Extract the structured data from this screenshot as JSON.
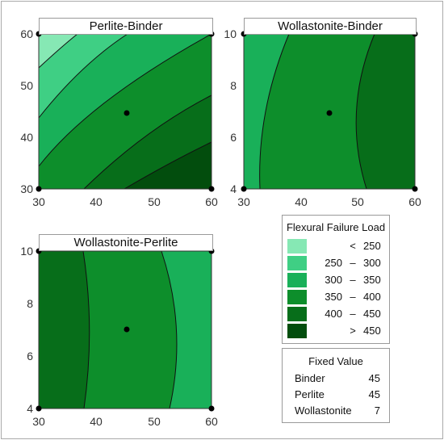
{
  "chart_data": [
    {
      "type": "contour",
      "title": "Perlite-Binder",
      "x_label": "",
      "y_label": "",
      "xlim": [
        30,
        60
      ],
      "ylim": [
        30,
        60
      ],
      "x_ticks": [
        "30",
        "40",
        "50",
        "60"
      ],
      "y_ticks": [
        "30",
        "40",
        "50",
        "60"
      ],
      "center_point": [
        45,
        45
      ],
      "corner_points": [
        [
          30,
          30
        ],
        [
          30,
          60
        ],
        [
          60,
          30
        ],
        [
          60,
          60
        ]
      ],
      "regions_present": [
        "250 – 300",
        "300 – 350",
        "350 – 400",
        "400 – 450",
        "> 450"
      ]
    },
    {
      "type": "contour",
      "title": "Wollastonite-Binder",
      "x_label": "",
      "y_label": "",
      "xlim": [
        30,
        60
      ],
      "ylim": [
        4,
        10
      ],
      "x_ticks": [
        "30",
        "40",
        "50",
        "60"
      ],
      "y_ticks": [
        "4",
        "6",
        "8",
        "10"
      ],
      "center_point": [
        45,
        7
      ],
      "corner_points": [
        [
          30,
          4
        ],
        [
          30,
          10
        ],
        [
          60,
          4
        ],
        [
          60,
          10
        ]
      ],
      "regions_present": [
        "300 – 350",
        "350 – 400",
        "400 – 450"
      ]
    },
    {
      "type": "contour",
      "title": "Wollastonite-Perlite",
      "x_label": "",
      "y_label": "",
      "xlim": [
        30,
        60
      ],
      "ylim": [
        4,
        10
      ],
      "x_ticks": [
        "30",
        "40",
        "50",
        "60"
      ],
      "y_ticks": [
        "4",
        "6",
        "8",
        "10"
      ],
      "center_point": [
        45,
        7
      ],
      "corner_points": [
        [
          30,
          4
        ],
        [
          30,
          10
        ],
        [
          60,
          4
        ],
        [
          60,
          10
        ]
      ],
      "regions_present": [
        "400 – 450",
        "350 – 400",
        "300 – 350"
      ]
    }
  ],
  "legend": {
    "title": "Flexural Failure Load",
    "items": [
      {
        "lo": "",
        "sep": "<",
        "hi": "250",
        "color": "#86e8b4"
      },
      {
        "lo": "250",
        "sep": "–",
        "hi": "300",
        "color": "#3fcf84"
      },
      {
        "lo": "300",
        "sep": "–",
        "hi": "350",
        "color": "#19b059"
      },
      {
        "lo": "350",
        "sep": "–",
        "hi": "400",
        "color": "#0d8e2b"
      },
      {
        "lo": "400",
        "sep": "–",
        "hi": "450",
        "color": "#076e1a"
      },
      {
        "lo": "",
        "sep": ">",
        "hi": "450",
        "color": "#024d0d"
      }
    ]
  },
  "fixed_value": {
    "title": "Fixed Value",
    "items": [
      {
        "name": "Binder",
        "value": "45"
      },
      {
        "name": "Perlite",
        "value": "45"
      },
      {
        "name": "Wollastonite",
        "value": "7"
      }
    ]
  }
}
